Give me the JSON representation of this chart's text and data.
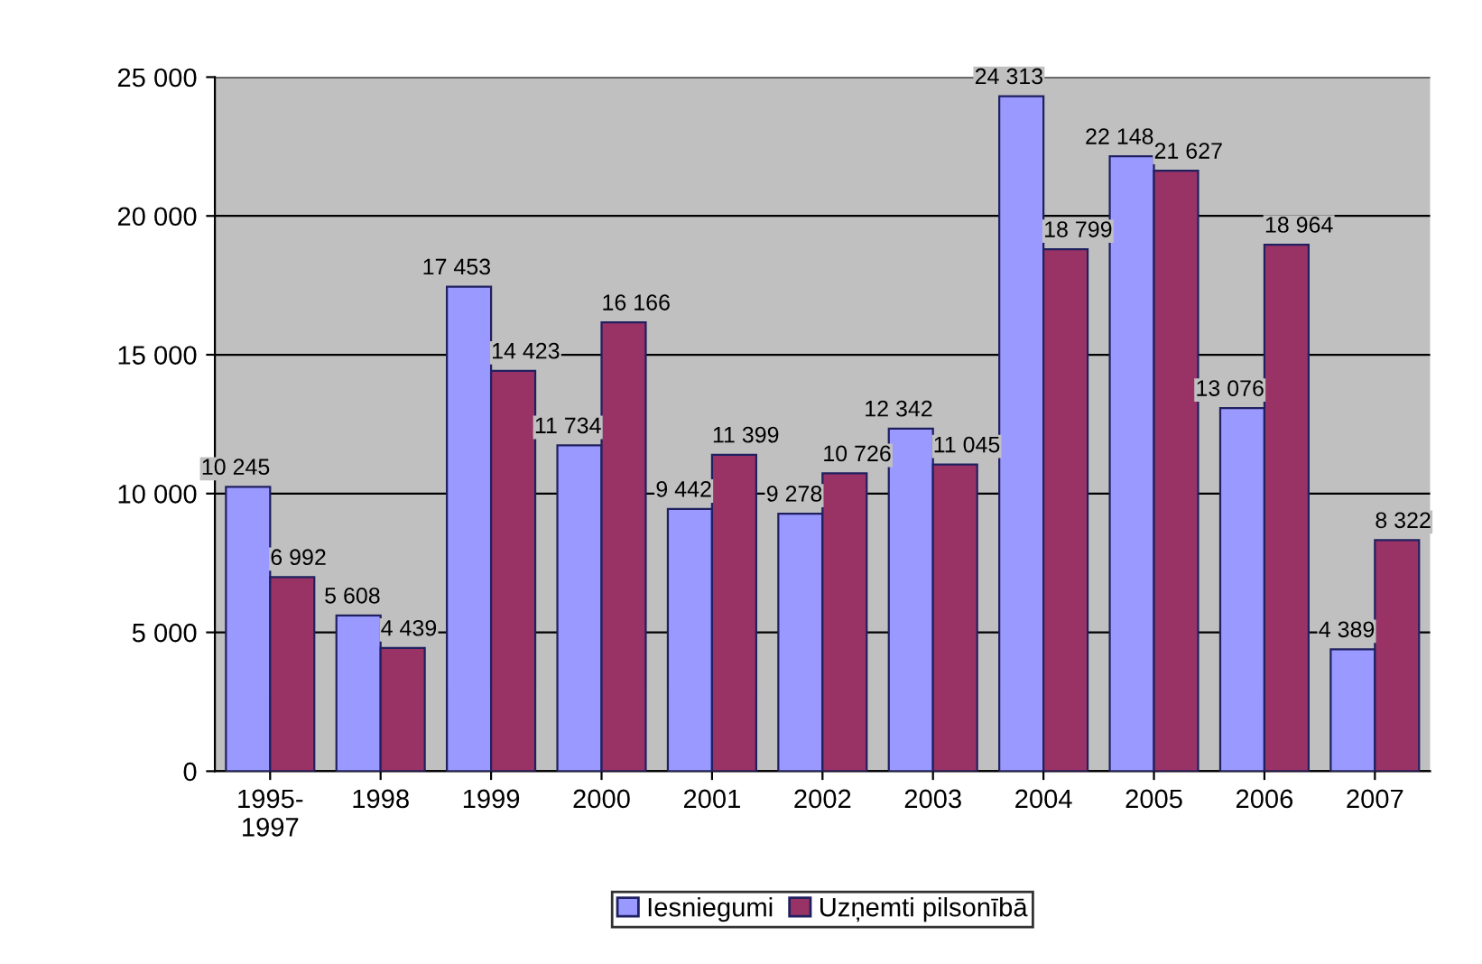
{
  "chart_data": {
    "type": "bar",
    "categories": [
      "1995-\n1997",
      "1998",
      "1999",
      "2000",
      "2001",
      "2002",
      "2003",
      "2004",
      "2005",
      "2006",
      "2007"
    ],
    "series": [
      {
        "name": "Iesniegumi",
        "color": "#9999ff",
        "values": [
          10245,
          5608,
          17453,
          11734,
          9442,
          9278,
          12342,
          24313,
          22148,
          13076,
          4389
        ],
        "value_labels": [
          "10 245",
          "5 608",
          "17 453",
          "11 734",
          "9 442",
          "9 278",
          "12 342",
          "24 313",
          "22 148",
          "13 076",
          "4 389"
        ]
      },
      {
        "name": "Uzņemti pilsonībā",
        "color": "#993366",
        "values": [
          6992,
          4439,
          14423,
          16166,
          11399,
          10726,
          11045,
          18799,
          21627,
          18964,
          8322
        ],
        "value_labels": [
          "6 992",
          "4 439",
          "14 423",
          "16 166",
          "11 399",
          "10 726",
          "11 045",
          "18 799",
          "21 627",
          "18 964",
          "8 322"
        ]
      }
    ],
    "ylim": [
      0,
      25000
    ],
    "yticks": [
      0,
      {
        "value": 5000,
        "label": "5 000"
      },
      {
        "value": 10000,
        "label": "10 000"
      },
      {
        "value": 15000,
        "label": "15 000"
      },
      {
        "value": 20000,
        "label": "20 000"
      },
      {
        "value": 25000,
        "label": "25 000"
      }
    ],
    "grid": "y",
    "legend": "bottom"
  }
}
